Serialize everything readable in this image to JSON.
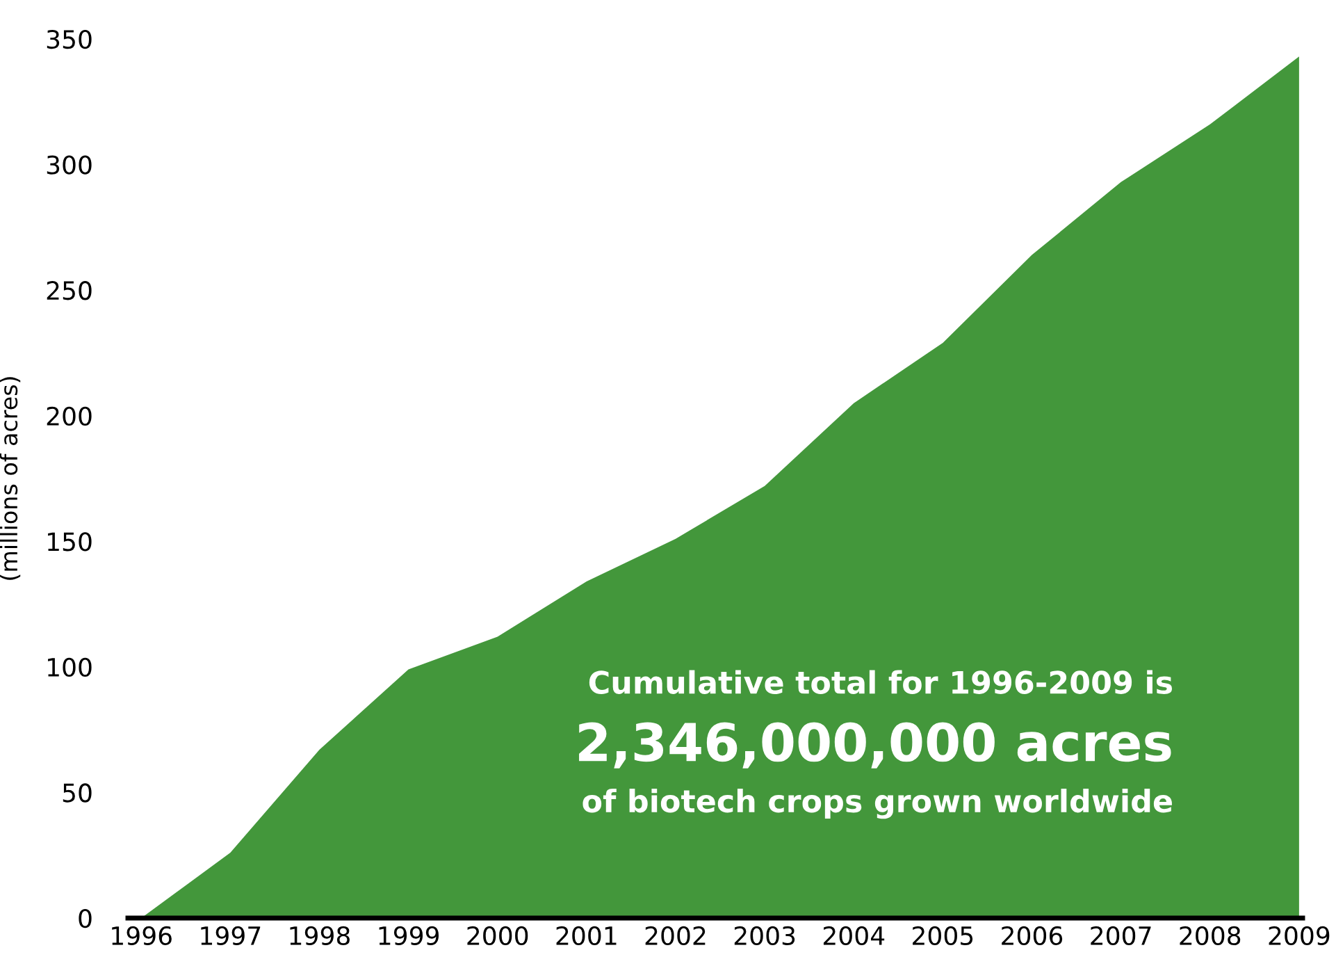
{
  "chart_data": {
    "type": "area",
    "ylabel": "(millions of acres)",
    "categories": [
      "1996",
      "1997",
      "1998",
      "1999",
      "2000",
      "2001",
      "2002",
      "2003",
      "2004",
      "2005",
      "2006",
      "2007",
      "2008",
      "2009"
    ],
    "series": [
      {
        "color": "#43973b",
        "values": [
          0,
          26,
          67,
          99,
          112,
          134,
          151,
          172,
          205,
          229,
          264,
          293,
          316,
          343
        ]
      }
    ],
    "ylim": [
      0,
      350
    ],
    "yticks": [
      0,
      50,
      100,
      150,
      200,
      250,
      300,
      350
    ],
    "grid": false,
    "legend": false,
    "annotations": [
      "Cumulative total for 1996-2009 is",
      "2,346,000,000 acres",
      "of biotech crops grown worldwide"
    ]
  }
}
